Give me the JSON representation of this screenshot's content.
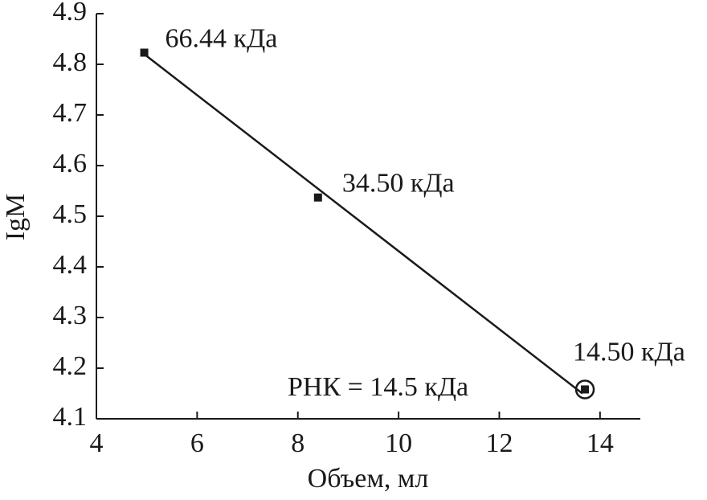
{
  "chart_data": {
    "type": "scatter",
    "x_label": "Объем, мл",
    "y_label": "IgM",
    "x": [
      4.95,
      8.4,
      13.7
    ],
    "values": [
      4.823,
      4.537,
      4.158
    ],
    "point_labels": [
      "66.44 кДа",
      "34.50 кДа",
      "14.50 кДа"
    ],
    "color": "#1a1a1a",
    "fit_line": {
      "x": [
        4.95,
        13.65
      ],
      "values": [
        4.82,
        4.15
      ]
    },
    "annotation": "РНК = 14.5 кДа",
    "xlim": [
      4,
      14.8
    ],
    "ylim": [
      4.1,
      4.9
    ],
    "xticks": [
      4,
      6,
      8,
      10,
      12,
      14
    ],
    "yticks": [
      4.1,
      4.2,
      4.3,
      4.4,
      4.5,
      4.6,
      4.7,
      4.8,
      4.9
    ],
    "grid": false
  }
}
